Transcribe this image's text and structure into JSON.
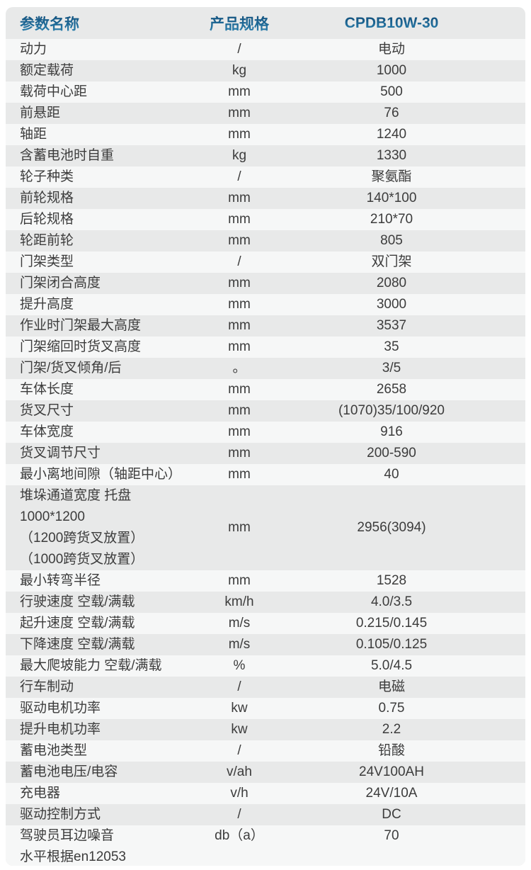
{
  "colors": {
    "header_text_blue_top": "#0e4a76",
    "header_text_blue_bottom": "#2f86b4",
    "card_background": "#e8e9e9",
    "stripe_white": "#f6f7f7",
    "row_text": "#3c3c3c"
  },
  "table": {
    "header": {
      "param": "参数名称",
      "spec": "产品规格",
      "model": "CPDB10W-30"
    },
    "rows": [
      {
        "name": "动力",
        "unit": "/",
        "value": "电动"
      },
      {
        "name": "额定载荷",
        "unit": "kg",
        "value": "1000"
      },
      {
        "name": "载荷中心距",
        "unit": "mm",
        "value": "500"
      },
      {
        "name": "前悬距",
        "unit": "mm",
        "value": "76"
      },
      {
        "name": "轴距",
        "unit": "mm",
        "value": "1240"
      },
      {
        "name": "含蓄电池时自重",
        "unit": "kg",
        "value": "1330"
      },
      {
        "name": "轮子种类",
        "unit": "/",
        "value": "聚氨酯"
      },
      {
        "name": "前轮规格",
        "unit": "mm",
        "value": "140*100"
      },
      {
        "name": "后轮规格",
        "unit": "mm",
        "value": "210*70"
      },
      {
        "name": "轮距前轮",
        "unit": "mm",
        "value": "805"
      },
      {
        "name": "门架类型",
        "unit": "/",
        "value": "双门架"
      },
      {
        "name": "门架闭合高度",
        "unit": "mm",
        "value": "2080"
      },
      {
        "name": "提升高度",
        "unit": "mm",
        "value": "3000"
      },
      {
        "name": "作业时门架最大高度",
        "unit": "mm",
        "value": "3537"
      },
      {
        "name": "门架缩回时货叉高度",
        "unit": "mm",
        "value": "35"
      },
      {
        "name": "门架/货叉倾角/后",
        "unit": "。",
        "value": "3/5"
      },
      {
        "name": "车体长度",
        "unit": "mm",
        "value": "2658"
      },
      {
        "name": "货叉尺寸",
        "unit": "mm",
        "value": "(1070)35/100/920"
      },
      {
        "name": "车体宽度",
        "unit": "mm",
        "value": "916"
      },
      {
        "name": "货叉调节尺寸",
        "unit": "mm",
        "value": "200-590"
      },
      {
        "name": "最小离地间隙（轴距中心）",
        "unit": "mm",
        "value": "40"
      },
      {
        "name": "堆垛通道宽度 托盘1000*1200\n（1200跨货叉放置）\n（1000跨货叉放置）",
        "unit": "mm",
        "value": "2956(3094)"
      },
      {
        "name": "最小转弯半径",
        "unit": "mm",
        "value": "1528"
      },
      {
        "name": "行驶速度 空载/满载",
        "unit": "km/h",
        "value": "4.0/3.5"
      },
      {
        "name": "起升速度 空载/满载",
        "unit": "m/s",
        "value": "0.215/0.145"
      },
      {
        "name": "下降速度 空载/满载",
        "unit": "m/s",
        "value": "0.105/0.125"
      },
      {
        "name": "最大爬坡能力 空载/满载",
        "unit": "%",
        "value": "5.0/4.5"
      },
      {
        "name": "行车制动",
        "unit": "/",
        "value": "电磁"
      },
      {
        "name": "驱动电机功率",
        "unit": "kw",
        "value": "0.75"
      },
      {
        "name": "提升电机功率",
        "unit": "kw",
        "value": "2.2"
      },
      {
        "name": "蓄电池类型",
        "unit": "/",
        "value": "铅酸"
      },
      {
        "name": "蓄电池电压/电容",
        "unit": "v/ah",
        "value": "24V100AH"
      },
      {
        "name": "充电器",
        "unit": "v/h",
        "value": "24V/10A"
      },
      {
        "name": "驱动控制方式",
        "unit": "/",
        "value": "DC"
      },
      {
        "name": "驾驶员耳边噪音\n水平根据en12053",
        "unit": "db（a）",
        "value": "70",
        "valign": "top"
      }
    ]
  }
}
